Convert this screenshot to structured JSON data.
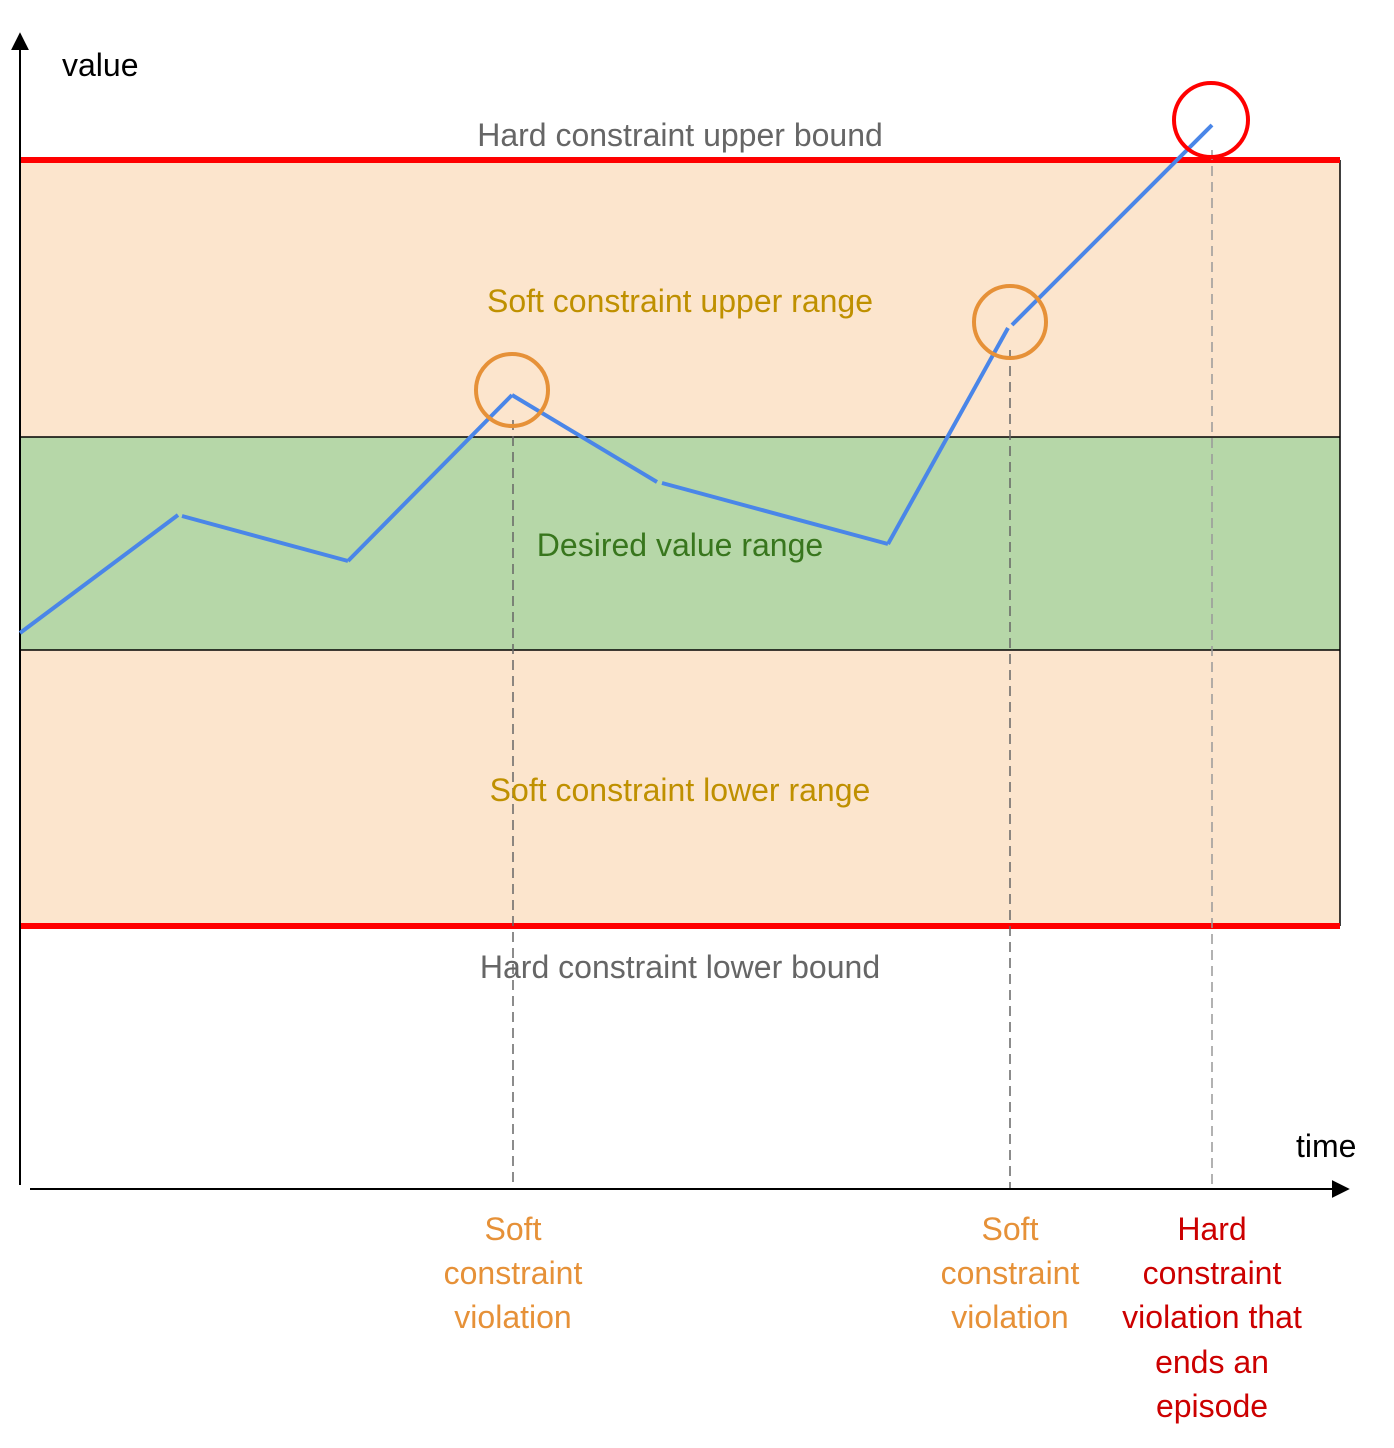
{
  "axes": {
    "y_label": "value",
    "x_label": "time"
  },
  "regions": {
    "hard_upper": {
      "label": "Hard constraint upper bound"
    },
    "soft_upper": {
      "label": "Soft constraint upper range"
    },
    "desired": {
      "label": "Desired value range"
    },
    "soft_lower": {
      "label": "Soft constraint lower range"
    },
    "hard_lower": {
      "label": "Hard constraint lower bound"
    }
  },
  "annotations": [
    {
      "lines": [
        "Soft",
        "constraint",
        "violation"
      ]
    },
    {
      "lines": [
        "Soft",
        "constraint",
        "violation"
      ]
    },
    {
      "lines": [
        "Hard",
        "constraint",
        "violation that",
        "ends an",
        "episode"
      ]
    }
  ],
  "colors": {
    "hard_bound": "#ff0000",
    "soft_fill": "#fce5cd",
    "desired_fill": "#b6d7a8",
    "trajectory": "#4a86e8",
    "soft_marker": "#e69138",
    "hard_marker": "#ff0000",
    "hard_label": "#666666",
    "soft_label": "#bf9000",
    "desired_label": "#38761d",
    "soft_violation_text": "#e69138",
    "hard_violation_text": "#cc0000",
    "axis": "#000000",
    "guide": "#666666"
  }
}
